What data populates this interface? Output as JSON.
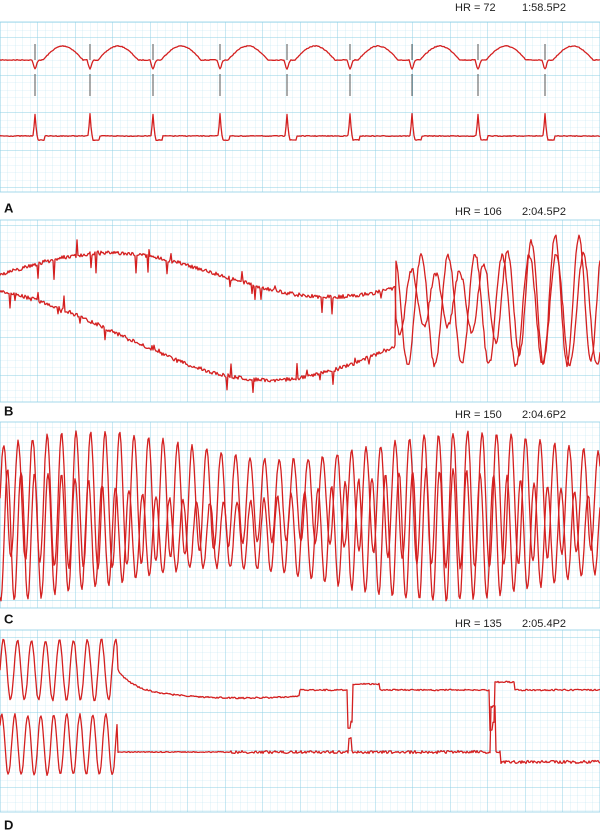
{
  "panels": [
    {
      "label": "A",
      "heart_rate": "HR = 72",
      "time": "1:58.5P2"
    },
    {
      "label": "B",
      "heart_rate": "HR = 106",
      "time": "2:04.5P2"
    },
    {
      "label": "C",
      "heart_rate": "HR = 150",
      "time": "2:04.6P2"
    },
    {
      "label": "D",
      "heart_rate": "HR = 135",
      "time": "2:05.4P2"
    }
  ]
}
